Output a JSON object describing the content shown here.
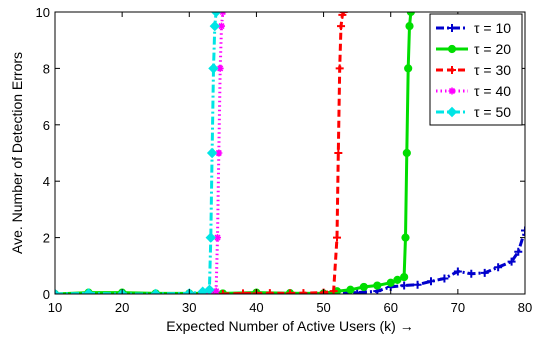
{
  "chart_data": {
    "type": "line",
    "title": "",
    "xlabel": "Expected Number of Active Users (k) →",
    "ylabel": "Ave. Number of Detection Errors",
    "xlim": [
      10,
      80
    ],
    "ylim": [
      0,
      10
    ],
    "xticks": [
      10,
      20,
      30,
      40,
      50,
      60,
      70,
      80
    ],
    "yticks": [
      0,
      2,
      4,
      6,
      8,
      10
    ],
    "grid": false,
    "legend_position": "top-right",
    "series": [
      {
        "name": "τ = 10",
        "color": "#0000cc",
        "line_style": "dashdot",
        "marker": "plus",
        "x": [
          10,
          15,
          20,
          25,
          30,
          35,
          40,
          45,
          50,
          55,
          58,
          60,
          62,
          64,
          66,
          68,
          70,
          72,
          74,
          76,
          78,
          79,
          80
        ],
        "y": [
          0,
          0,
          0,
          0,
          0,
          0.01,
          0,
          0,
          0.02,
          0.05,
          0.1,
          0.25,
          0.3,
          0.33,
          0.45,
          0.55,
          0.8,
          0.72,
          0.75,
          0.95,
          1.15,
          1.5,
          2.25
        ]
      },
      {
        "name": "τ = 20",
        "color": "#00dd00",
        "line_style": "solid",
        "marker": "circle",
        "x": [
          10,
          15,
          20,
          25,
          30,
          35,
          40,
          45,
          50,
          52,
          54,
          56,
          58,
          60,
          61,
          62,
          62.2,
          62.4,
          62.6,
          62.8,
          63
        ],
        "y": [
          0,
          0.05,
          0.05,
          0.02,
          0.02,
          0.02,
          0.05,
          0.03,
          0.02,
          0.1,
          0.15,
          0.25,
          0.3,
          0.4,
          0.5,
          0.6,
          2,
          5,
          8,
          9.5,
          10
        ]
      },
      {
        "name": "τ = 30",
        "color": "#ff0000",
        "line_style": "dashed",
        "marker": "plus",
        "x": [
          30,
          33,
          35,
          38,
          40,
          42,
          45,
          47,
          50,
          51.5,
          52,
          52.2,
          52.4,
          52.6,
          52.8,
          53
        ],
        "y": [
          0,
          0,
          0,
          0.02,
          0.02,
          0.03,
          0.02,
          0.03,
          0.05,
          0.1,
          2,
          5,
          8,
          9.5,
          9.9,
          10
        ]
      },
      {
        "name": "τ = 40",
        "color": "#ff00ff",
        "line_style": "dotted",
        "marker": "star",
        "x": [
          30,
          32,
          33,
          34,
          34.2,
          34.4,
          34.6,
          34.8,
          35
        ],
        "y": [
          0,
          0.02,
          0.05,
          0.1,
          2,
          5,
          8,
          9.5,
          10
        ]
      },
      {
        "name": "τ = 50",
        "color": "#00e5e5",
        "line_style": "dashdot",
        "marker": "diamond",
        "x": [
          10,
          15,
          20,
          25,
          30,
          32,
          33,
          33.2,
          33.4,
          33.6,
          33.8,
          34
        ],
        "y": [
          0,
          0.02,
          0,
          0,
          0.02,
          0.08,
          0.15,
          2,
          5,
          8,
          9.5,
          10
        ]
      }
    ]
  }
}
